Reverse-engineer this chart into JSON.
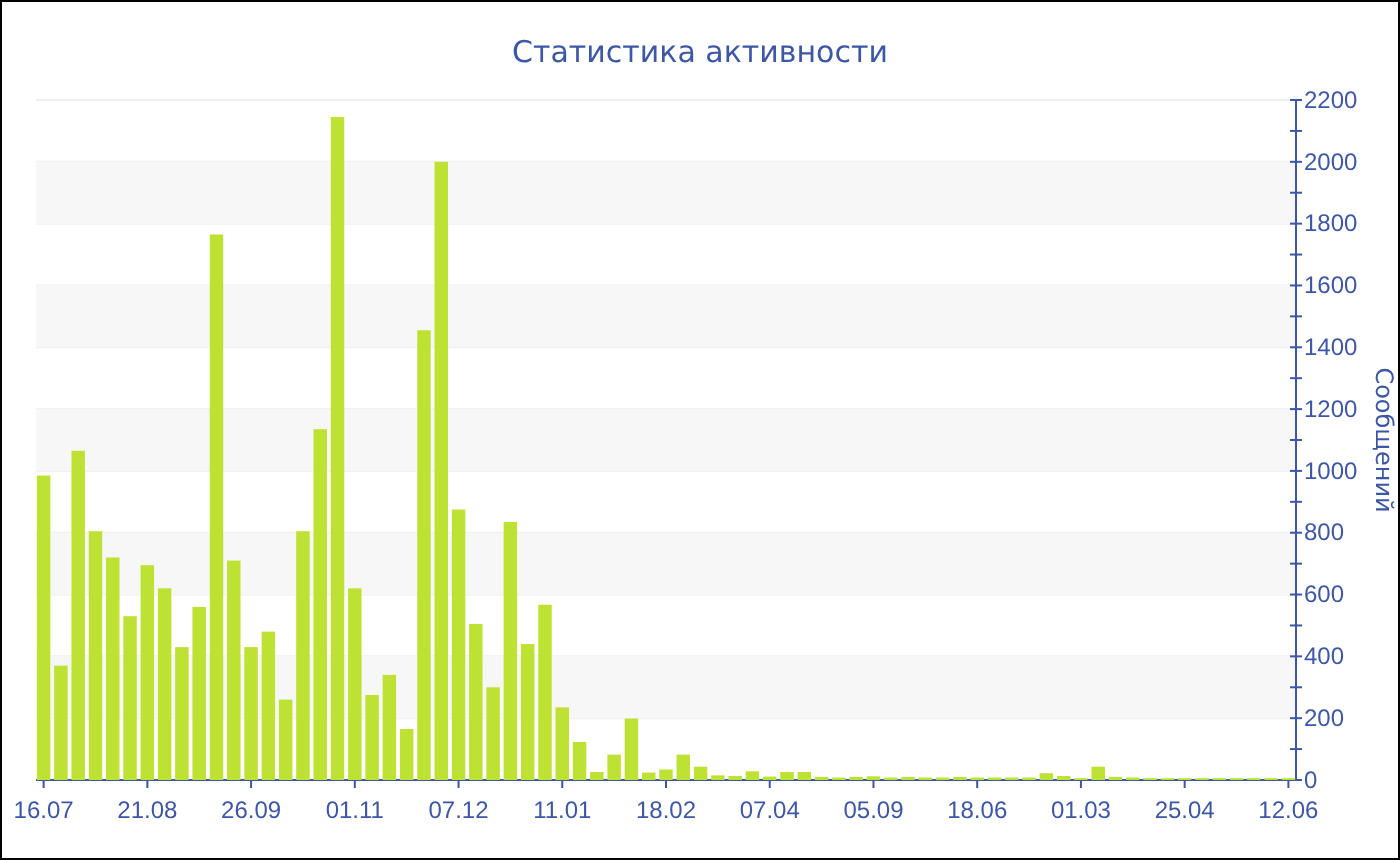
{
  "chart_data": {
    "type": "bar",
    "title": "Статистика активности",
    "ylabel": "Сообщений",
    "categories": [
      "16.07",
      null,
      null,
      null,
      null,
      null,
      "21.08",
      null,
      null,
      null,
      null,
      null,
      "26.09",
      null,
      null,
      null,
      null,
      null,
      "01.11",
      null,
      null,
      null,
      null,
      null,
      "07.12",
      null,
      null,
      null,
      null,
      null,
      "11.01",
      null,
      null,
      null,
      null,
      null,
      "18.02",
      null,
      null,
      null,
      null,
      null,
      "07.04",
      null,
      null,
      null,
      null,
      null,
      "05.09",
      null,
      null,
      null,
      null,
      null,
      "18.06",
      null,
      null,
      null,
      null,
      null,
      "01.03",
      null,
      null,
      null,
      null,
      null,
      "25.04",
      null,
      null,
      null,
      null,
      null,
      "12.06"
    ],
    "values": [
      985,
      370,
      1065,
      805,
      720,
      530,
      695,
      620,
      430,
      560,
      1765,
      710,
      430,
      480,
      260,
      805,
      1135,
      2145,
      620,
      275,
      340,
      165,
      1455,
      2000,
      875,
      505,
      300,
      835,
      440,
      567,
      235,
      123,
      26,
      82,
      199,
      24,
      34,
      82,
      43,
      15,
      13,
      28,
      11,
      26,
      26,
      10,
      8,
      10,
      12,
      8,
      10,
      8,
      8,
      10,
      8,
      8,
      8,
      8,
      22,
      13,
      6,
      43,
      10,
      8,
      6,
      6,
      6,
      6,
      6,
      6,
      6,
      6,
      6
    ],
    "color": "#bde234",
    "ylim": [
      0,
      2200
    ],
    "yticks": [
      0,
      {
        "value": 100,
        "label": null
      },
      200,
      {
        "value": 300,
        "label": null
      },
      400,
      {
        "value": 500,
        "label": null
      },
      600,
      {
        "value": 700,
        "label": null
      },
      800,
      {
        "value": 900,
        "label": null
      },
      1000,
      {
        "value": 1100,
        "label": null
      },
      1200,
      {
        "value": 1300,
        "label": null
      },
      1400,
      {
        "value": 1500,
        "label": null
      },
      1600,
      {
        "value": 1700,
        "label": null
      },
      1800,
      {
        "value": 1900,
        "label": null
      },
      2000,
      {
        "value": 2100,
        "label": null
      },
      2200
    ],
    "grid": true
  }
}
